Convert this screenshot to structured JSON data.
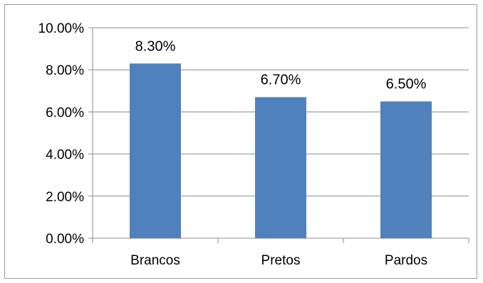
{
  "chart_data": {
    "type": "bar",
    "categories": [
      "Brancos",
      "Pretos",
      "Pardos"
    ],
    "series": [
      {
        "values": [
          8.3,
          6.7,
          6.5
        ]
      }
    ],
    "data_labels": [
      "8.30%",
      "6.70%",
      "6.50%"
    ],
    "y_ticks": [
      "0.00%",
      "2.00%",
      "4.00%",
      "6.00%",
      "8.00%",
      "10.00%"
    ],
    "y_tick_values": [
      0,
      2,
      4,
      6,
      8,
      10
    ],
    "ylim": [
      0,
      10
    ],
    "grid": true,
    "legend": "none",
    "bar_color": "#4F81BD",
    "grid_color": "#8C8C8C"
  }
}
